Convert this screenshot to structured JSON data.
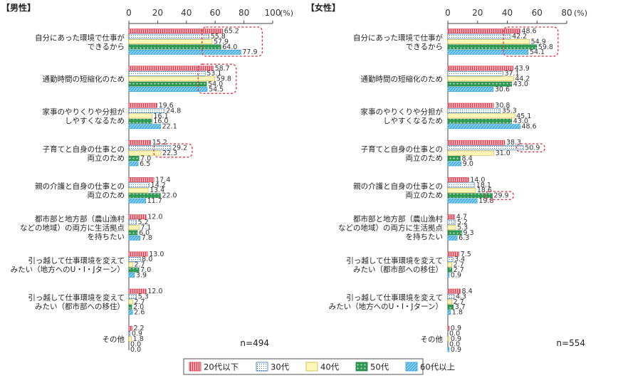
{
  "legend": {
    "items": [
      {
        "name": "20代以下",
        "fill": "#f4a6ae",
        "pattern": "vlines",
        "stroke": "#d9374b"
      },
      {
        "name": "30代",
        "fill": "#ffffff",
        "pattern": "dots",
        "stroke": "#2f6fb0"
      },
      {
        "name": "40代",
        "fill": "#fff6b8",
        "pattern": "none",
        "stroke": "#c9b53a"
      },
      {
        "name": "50代",
        "fill": "#2e9a52",
        "pattern": "wdots",
        "stroke": "#1f7a3e"
      },
      {
        "name": "60代以上",
        "fill": "#8fd3f0",
        "pattern": "diag",
        "stroke": "#2a9fd6"
      }
    ]
  },
  "chart_data": [
    {
      "type": "bar",
      "orientation": "horizontal",
      "title": "【男性】",
      "unit": "(%)",
      "xlim": [
        0,
        100
      ],
      "ticks": [
        0,
        20,
        40,
        60,
        80,
        100
      ],
      "n_label": "n=494",
      "categories": [
        [
          "自分にあった環境で仕事が",
          "できるから"
        ],
        [
          "通勤時間の短縮化のため"
        ],
        [
          "家事のやりくりや分担が",
          "しやすくなるため"
        ],
        [
          "子育てと自身の仕事との",
          "両立のため"
        ],
        [
          "親の介護と自身の仕事との",
          "両立のため"
        ],
        [
          "都市部と地方部（農山漁村",
          "などの地域）の両方に生活拠点",
          "を持ちたい"
        ],
        [
          "引っ越して仕事環境を変えて",
          "みたい（地方へのU・I・Jターン）"
        ],
        [
          "引っ越して仕事環境を変えて",
          "みたい（都市部への移住）"
        ],
        [
          "その他"
        ]
      ],
      "series": [
        {
          "name": "20代以下",
          "values": [
            65.2,
            58.7,
            19.6,
            15.2,
            17.4,
            12.0,
            13.0,
            12.0,
            2.2
          ]
        },
        {
          "name": "30代",
          "values": [
            55.8,
            53.1,
            24.8,
            29.2,
            14.2,
            5.2,
            8.0,
            5.3,
            0.9
          ]
        },
        {
          "name": "40代",
          "values": [
            57.9,
            59.8,
            16.1,
            22.3,
            13.4,
            7.1,
            2.7,
            2.7,
            1.8
          ]
        },
        {
          "name": "50代",
          "values": [
            64.0,
            54.0,
            16.0,
            7.0,
            22.0,
            6.0,
            7.0,
            2.0,
            0.0
          ]
        },
        {
          "name": "60代以上",
          "values": [
            77.9,
            54.5,
            22.1,
            6.5,
            11.7,
            7.8,
            3.9,
            2.6,
            0.0
          ]
        }
      ],
      "highlights": [
        {
          "category": 0,
          "series": [
            0,
            4
          ]
        },
        {
          "category": 1,
          "series": [
            0,
            4
          ]
        },
        {
          "category": 3,
          "series": [
            1,
            2
          ]
        }
      ]
    },
    {
      "type": "bar",
      "orientation": "horizontal",
      "title": "【女性】",
      "unit": "(%)",
      "xlim": [
        0,
        80
      ],
      "ticks": [
        0,
        20,
        40,
        60,
        80
      ],
      "n_label": "n=554",
      "categories": [
        [
          "自分にあった環境で仕事が",
          "できるから"
        ],
        [
          "通勤時間の短縮化のため"
        ],
        [
          "家事のやりくりや分担が",
          "しやすくなるため"
        ],
        [
          "子育てと自身の仕事との",
          "両立のため"
        ],
        [
          "親の介護と自身の仕事との",
          "両立のため"
        ],
        [
          "都市部と地方部（農山漁村",
          "などの地域）の両方に生活拠点",
          "を持ちたい"
        ],
        [
          "引っ越して仕事環境を変えて",
          "みたい（都市部への移住）"
        ],
        [
          "引っ越して仕事環境を変えて",
          "みたい（地方へのU・I・Jターン）"
        ],
        [
          "その他"
        ]
      ],
      "series": [
        {
          "name": "20代以下",
          "values": [
            48.6,
            43.9,
            30.8,
            38.3,
            14.0,
            4.7,
            7.5,
            8.4,
            0.9
          ]
        },
        {
          "name": "30代",
          "values": [
            42.2,
            37.1,
            35.3,
            50.9,
            18.1,
            5.2,
            3.4,
            4.3,
            0.0
          ]
        },
        {
          "name": "40代",
          "values": [
            54.9,
            44.2,
            45.1,
            31.0,
            18.6,
            5.3,
            2.7,
            2.7,
            0.9
          ]
        },
        {
          "name": "50代",
          "values": [
            59.8,
            43.0,
            43.0,
            8.4,
            29.9,
            9.3,
            2.7,
            3.7,
            0.0
          ]
        },
        {
          "name": "60代以上",
          "values": [
            54.1,
            30.6,
            48.6,
            9.0,
            19.8,
            6.3,
            0.9,
            1.8,
            0.9
          ]
        }
      ],
      "highlights": [
        {
          "category": 0,
          "series": [
            0,
            4
          ]
        },
        {
          "category": 3,
          "series": [
            1,
            1
          ]
        },
        {
          "category": 4,
          "series": [
            3,
            3
          ]
        }
      ]
    }
  ]
}
